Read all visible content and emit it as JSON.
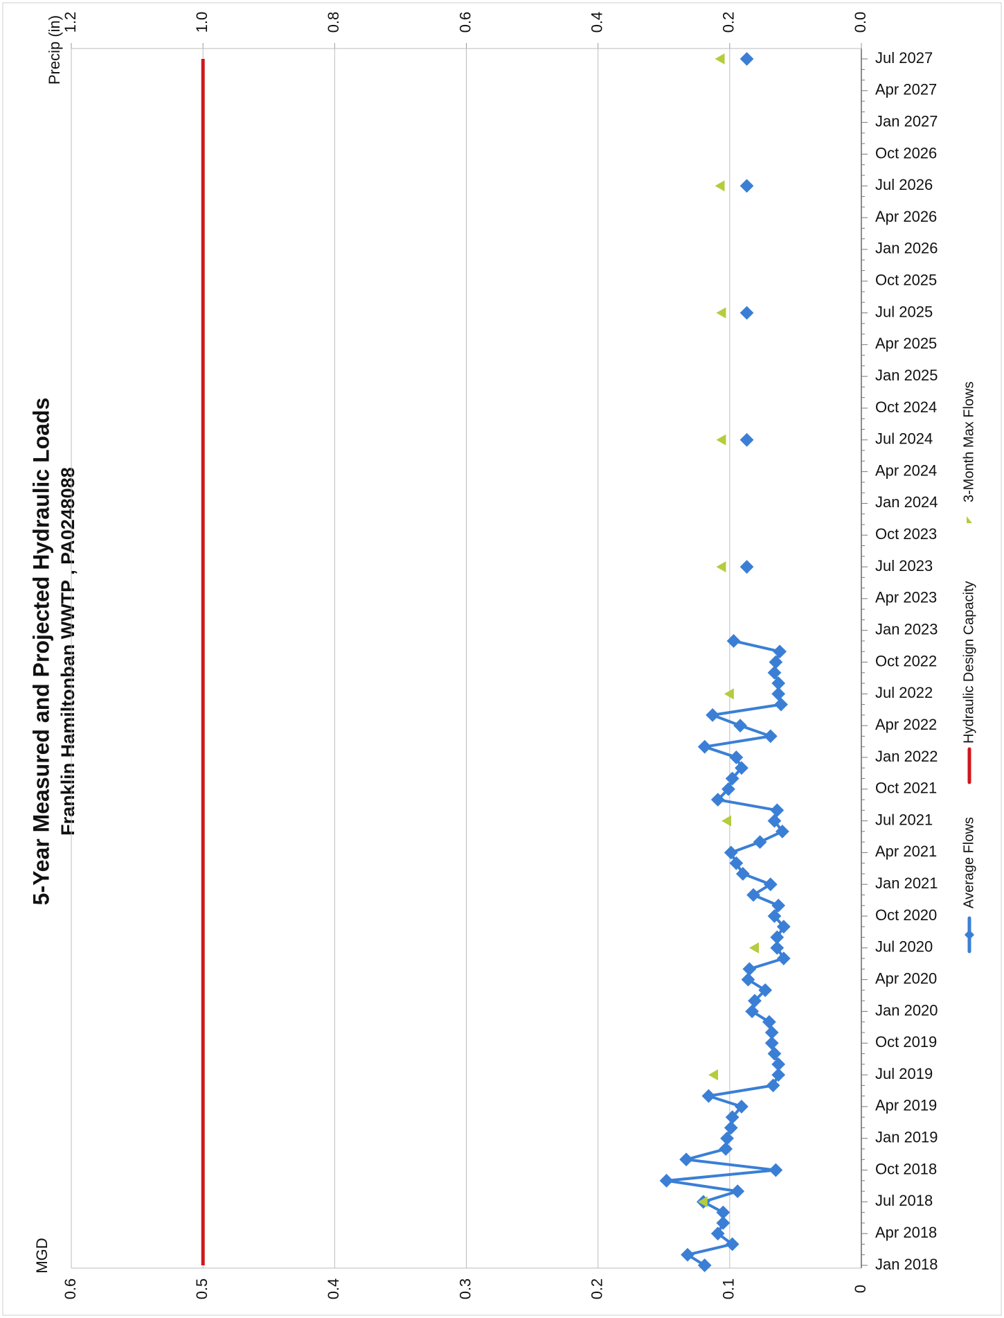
{
  "chart_data": {
    "type": "line",
    "title": "5-Year Measured and Projected Hydraulic Loads",
    "subtitle": "Franklin Hamiltonban WWTP , PA0248088",
    "ylabel": "MGD",
    "y2label": "Precip (in)",
    "categories": [
      "Jan 2018",
      null,
      null,
      "Apr 2018",
      null,
      null,
      "Jul 2018",
      null,
      null,
      "Oct 2018",
      null,
      null,
      "Jan 2019",
      null,
      null,
      "Apr 2019",
      null,
      null,
      "Jul 2019",
      null,
      null,
      "Oct 2019",
      null,
      null,
      "Jan 2020",
      null,
      null,
      "Apr 2020",
      null,
      null,
      "Jul 2020",
      null,
      null,
      "Oct 2020",
      null,
      null,
      "Jan 2021",
      null,
      null,
      "Apr 2021",
      null,
      null,
      "Jul 2021",
      null,
      null,
      "Oct 2021",
      null,
      null,
      "Jan 2022",
      null,
      null,
      "Apr 2022",
      null,
      null,
      "Jul 2022",
      null,
      null,
      "Oct 2022",
      null,
      null,
      "Jan 2023",
      null,
      null,
      "Apr 2023",
      null,
      null,
      "Jul 2023",
      null,
      null,
      "Oct 2023",
      null,
      null,
      "Jan 2024",
      null,
      null,
      "Apr 2024",
      null,
      null,
      "Jul 2024",
      null,
      null,
      "Oct 2024",
      null,
      null,
      "Jan 2025",
      null,
      null,
      "Apr 2025",
      null,
      null,
      "Jul 2025",
      null,
      null,
      "Oct 2025",
      null,
      null,
      "Jan 2026",
      null,
      null,
      "Apr 2026",
      null,
      null,
      "Jul 2026",
      null,
      null,
      "Oct 2026",
      null,
      null,
      "Jan 2027",
      null,
      null,
      "Apr 2027",
      null,
      null,
      "Jul 2027"
    ],
    "series": [
      {
        "name": "Average Flows",
        "color": "#3a7fd5",
        "marker": "diamond",
        "values": [
          0.119,
          0.132,
          0.098,
          0.109,
          0.105,
          0.105,
          0.12,
          0.094,
          0.148,
          0.065,
          0.133,
          0.103,
          0.102,
          0.099,
          0.098,
          0.091,
          0.116,
          0.067,
          0.063,
          0.063,
          0.066,
          0.068,
          0.068,
          0.07,
          0.083,
          0.081,
          0.073,
          0.086,
          0.085,
          0.059,
          0.064,
          0.064,
          0.059,
          0.066,
          0.063,
          0.082,
          0.069,
          0.09,
          0.095,
          0.099,
          0.077,
          0.06,
          0.066,
          0.064,
          0.109,
          0.101,
          0.098,
          0.091,
          0.095,
          0.119,
          0.069,
          0.092,
          0.113,
          0.061,
          0.063,
          0.063,
          0.066,
          0.065,
          0.062,
          0.097,
          null,
          null,
          null,
          null,
          null,
          null,
          0.087,
          null,
          null,
          null,
          null,
          null,
          null,
          null,
          null,
          null,
          null,
          null,
          0.087,
          null,
          null,
          null,
          null,
          null,
          null,
          null,
          null,
          null,
          null,
          null,
          0.087,
          null,
          null,
          null,
          null,
          null,
          null,
          null,
          null,
          null,
          null,
          null,
          0.087,
          null,
          null,
          null,
          null,
          null,
          null,
          null,
          null,
          null,
          null,
          null,
          0.087
        ]
      },
      {
        "name": "Hydraulic Design Capacity",
        "color": "#d0161d",
        "marker": "none",
        "values": [
          0.5,
          0.5,
          0.5,
          0.5,
          0.5,
          0.5,
          0.5,
          0.5,
          0.5,
          0.5,
          0.5,
          0.5,
          0.5,
          0.5,
          0.5,
          0.5,
          0.5,
          0.5,
          0.5,
          0.5,
          0.5,
          0.5,
          0.5,
          0.5,
          0.5,
          0.5,
          0.5,
          0.5,
          0.5,
          0.5,
          0.5,
          0.5,
          0.5,
          0.5,
          0.5,
          0.5,
          0.5,
          0.5,
          0.5,
          0.5,
          0.5,
          0.5,
          0.5,
          0.5,
          0.5,
          0.5,
          0.5,
          0.5,
          0.5,
          0.5,
          0.5,
          0.5,
          0.5,
          0.5,
          0.5,
          0.5,
          0.5,
          0.5,
          0.5,
          0.5,
          0.5,
          0.5,
          0.5,
          0.5,
          0.5,
          0.5,
          0.5,
          0.5,
          0.5,
          0.5,
          0.5,
          0.5,
          0.5,
          0.5,
          0.5,
          0.5,
          0.5,
          0.5,
          0.5,
          0.5,
          0.5,
          0.5,
          0.5,
          0.5,
          0.5,
          0.5,
          0.5,
          0.5,
          0.5,
          0.5,
          0.5,
          0.5,
          0.5,
          0.5,
          0.5,
          0.5,
          0.5,
          0.5,
          0.5,
          0.5,
          0.5,
          0.5,
          0.5,
          0.5,
          0.5,
          0.5,
          0.5,
          0.5,
          0.5,
          0.5,
          0.5,
          0.5,
          0.5,
          0.5,
          0.5
        ]
      },
      {
        "name": "3-Month Max Flows",
        "color": "#b5cc3d",
        "marker": "triangle",
        "values": [
          null,
          null,
          null,
          null,
          null,
          null,
          0.12,
          null,
          null,
          null,
          null,
          null,
          null,
          null,
          null,
          null,
          null,
          null,
          0.112,
          null,
          null,
          null,
          null,
          null,
          null,
          null,
          null,
          null,
          null,
          null,
          0.081,
          null,
          null,
          null,
          null,
          null,
          null,
          null,
          null,
          null,
          null,
          null,
          0.102,
          null,
          null,
          null,
          null,
          null,
          null,
          null,
          null,
          null,
          null,
          null,
          0.1,
          null,
          null,
          null,
          null,
          null,
          null,
          null,
          null,
          null,
          null,
          null,
          0.106,
          null,
          null,
          null,
          null,
          null,
          null,
          null,
          null,
          null,
          null,
          null,
          0.106,
          null,
          null,
          null,
          null,
          null,
          null,
          null,
          null,
          null,
          null,
          null,
          0.106,
          null,
          null,
          null,
          null,
          null,
          null,
          null,
          null,
          null,
          null,
          null,
          0.107,
          null,
          null,
          null,
          null,
          null,
          null,
          null,
          null,
          null,
          null,
          null,
          0.107
        ]
      }
    ],
    "ylim": [
      0,
      0.6
    ],
    "yticks": [
      0,
      0.1,
      0.2,
      0.3,
      0.4,
      0.5,
      0.6
    ],
    "y2lim": [
      0,
      1.2
    ],
    "y2ticks": [
      {
        "value": 0,
        "label": "0.0"
      },
      0.2,
      0.4,
      0.6,
      0.8,
      {
        "value": 1,
        "label": "1.0"
      },
      1.2
    ],
    "grid": true
  }
}
